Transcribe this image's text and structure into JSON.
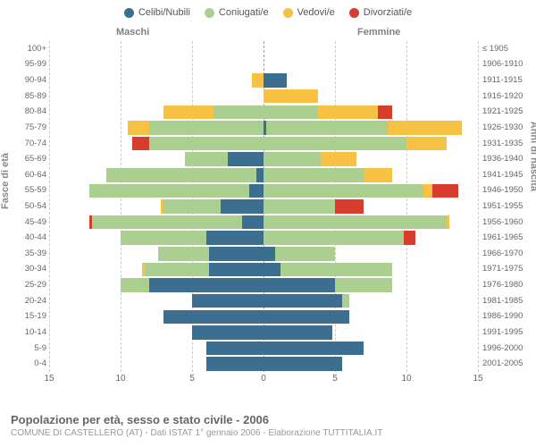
{
  "legend": [
    {
      "label": "Celibi/Nubili",
      "color": "#3b6e8f"
    },
    {
      "label": "Coniugati/e",
      "color": "#aacf91"
    },
    {
      "label": "Vedovi/e",
      "color": "#f7c244"
    },
    {
      "label": "Divorziati/e",
      "color": "#d73c2c"
    }
  ],
  "headers": {
    "left": "Maschi",
    "right": "Femmine"
  },
  "axis_titles": {
    "left": "Fasce di età",
    "right": "Anni di nascita"
  },
  "footer": {
    "title": "Popolazione per età, sesso e stato civile - 2006",
    "sub": "COMUNE DI CASTELLERO (AT) - Dati ISTAT 1° gennaio 2006 - Elaborazione TUTTITALIA.IT"
  },
  "chart": {
    "type": "population-pyramid",
    "xlim": 15,
    "xticks": [
      15,
      10,
      5,
      0,
      5,
      10,
      15
    ],
    "grid_positions": [
      -15,
      -10,
      -5,
      0,
      5,
      10,
      15
    ],
    "grid_color": "#cccccc",
    "center_color": "#999999",
    "background": "#ffffff",
    "bar_gap": 0.12,
    "label_fontsize": 9.5,
    "tick_fontsize": 10,
    "rows": [
      {
        "age": "100+",
        "birth": "≤ 1905",
        "m": {
          "c": 0,
          "co": 0,
          "v": 0,
          "d": 0
        },
        "f": {
          "c": 0,
          "co": 0,
          "v": 0,
          "d": 0
        }
      },
      {
        "age": "95-99",
        "birth": "1906-1910",
        "m": {
          "c": 0,
          "co": 0,
          "v": 0,
          "d": 0
        },
        "f": {
          "c": 0,
          "co": 0,
          "v": 0,
          "d": 0
        }
      },
      {
        "age": "90-94",
        "birth": "1911-1915",
        "m": {
          "c": 0,
          "co": 0,
          "v": 0.8,
          "d": 0
        },
        "f": {
          "c": 1.6,
          "co": 0,
          "v": 0,
          "d": 0
        }
      },
      {
        "age": "85-89",
        "birth": "1916-1920",
        "m": {
          "c": 0,
          "co": 0,
          "v": 0,
          "d": 0
        },
        "f": {
          "c": 0,
          "co": 0,
          "v": 3.8,
          "d": 0
        }
      },
      {
        "age": "80-84",
        "birth": "1921-1925",
        "m": {
          "c": 0,
          "co": 3.5,
          "v": 3.5,
          "d": 0
        },
        "f": {
          "c": 0,
          "co": 3.8,
          "v": 4.2,
          "d": 1
        }
      },
      {
        "age": "75-79",
        "birth": "1926-1930",
        "m": {
          "c": 0,
          "co": 8,
          "v": 1.5,
          "d": 0
        },
        "f": {
          "c": 0.2,
          "co": 8.5,
          "v": 5.2,
          "d": 0
        }
      },
      {
        "age": "70-74",
        "birth": "1931-1935",
        "m": {
          "c": 0,
          "co": 8,
          "v": 0,
          "d": 1.2
        },
        "f": {
          "c": 0,
          "co": 10,
          "v": 2.8,
          "d": 0
        }
      },
      {
        "age": "65-69",
        "birth": "1936-1940",
        "m": {
          "c": 2.5,
          "co": 3,
          "v": 0,
          "d": 0
        },
        "f": {
          "c": 0,
          "co": 4,
          "v": 2.5,
          "d": 0
        }
      },
      {
        "age": "60-64",
        "birth": "1941-1945",
        "m": {
          "c": 0.5,
          "co": 10.5,
          "v": 0,
          "d": 0
        },
        "f": {
          "c": 0,
          "co": 7,
          "v": 2,
          "d": 0
        }
      },
      {
        "age": "55-59",
        "birth": "1946-1950",
        "m": {
          "c": 1,
          "co": 11.2,
          "v": 0,
          "d": 0
        },
        "f": {
          "c": 0,
          "co": 11.2,
          "v": 0.6,
          "d": 1.8
        }
      },
      {
        "age": "50-54",
        "birth": "1951-1955",
        "m": {
          "c": 3,
          "co": 4,
          "v": 0.2,
          "d": 0
        },
        "f": {
          "c": 0,
          "co": 5,
          "v": 0,
          "d": 2
        }
      },
      {
        "age": "45-49",
        "birth": "1956-1960",
        "m": {
          "c": 1.5,
          "co": 10.5,
          "v": 0,
          "d": 0.2
        },
        "f": {
          "c": 0,
          "co": 12.8,
          "v": 0.2,
          "d": 0
        }
      },
      {
        "age": "40-44",
        "birth": "1961-1965",
        "m": {
          "c": 4,
          "co": 6,
          "v": 0,
          "d": 0
        },
        "f": {
          "c": 0,
          "co": 9.8,
          "v": 0,
          "d": 0.8
        }
      },
      {
        "age": "35-39",
        "birth": "1966-1970",
        "m": {
          "c": 3.8,
          "co": 3.6,
          "v": 0,
          "d": 0
        },
        "f": {
          "c": 0.8,
          "co": 4.2,
          "v": 0,
          "d": 0
        }
      },
      {
        "age": "30-34",
        "birth": "1971-1975",
        "m": {
          "c": 3.8,
          "co": 4.5,
          "v": 0.2,
          "d": 0
        },
        "f": {
          "c": 1.2,
          "co": 7.8,
          "v": 0,
          "d": 0
        }
      },
      {
        "age": "25-29",
        "birth": "1976-1980",
        "m": {
          "c": 8,
          "co": 2,
          "v": 0,
          "d": 0
        },
        "f": {
          "c": 5,
          "co": 4,
          "v": 0,
          "d": 0
        }
      },
      {
        "age": "20-24",
        "birth": "1981-1985",
        "m": {
          "c": 5,
          "co": 0,
          "v": 0,
          "d": 0
        },
        "f": {
          "c": 5.5,
          "co": 0.5,
          "v": 0,
          "d": 0
        }
      },
      {
        "age": "15-19",
        "birth": "1986-1990",
        "m": {
          "c": 7,
          "co": 0,
          "v": 0,
          "d": 0
        },
        "f": {
          "c": 6,
          "co": 0,
          "v": 0,
          "d": 0
        }
      },
      {
        "age": "10-14",
        "birth": "1991-1995",
        "m": {
          "c": 5,
          "co": 0,
          "v": 0,
          "d": 0
        },
        "f": {
          "c": 4.8,
          "co": 0,
          "v": 0,
          "d": 0
        }
      },
      {
        "age": "5-9",
        "birth": "1996-2000",
        "m": {
          "c": 4,
          "co": 0,
          "v": 0,
          "d": 0
        },
        "f": {
          "c": 7,
          "co": 0,
          "v": 0,
          "d": 0
        }
      },
      {
        "age": "0-4",
        "birth": "2001-2005",
        "m": {
          "c": 4,
          "co": 0,
          "v": 0,
          "d": 0
        },
        "f": {
          "c": 5.5,
          "co": 0,
          "v": 0,
          "d": 0
        }
      }
    ]
  }
}
